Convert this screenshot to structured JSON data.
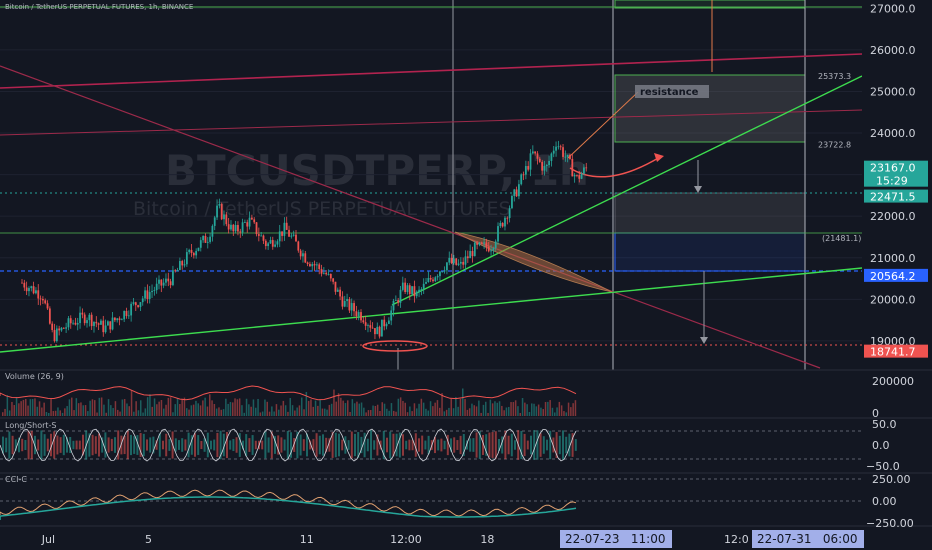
{
  "header": {
    "title": "Bitcoin / TetherUS PERPETUAL FUTURES, 1h, BINANCE"
  },
  "watermark": {
    "symbol": "BTCUSDTPERP, 1h",
    "name": "Bitcoin / TetherUS PERPETUAL FUTURES"
  },
  "colors": {
    "bg": "#131722",
    "up": "#26a69a",
    "down": "#ef5350",
    "green_line": "#3ddc4f",
    "red_line": "#b2234f",
    "blue": "#2962ff",
    "box": "#4caf50",
    "grid": "#1e2230"
  },
  "chart_data": {
    "type": "candlestick",
    "ylim": [
      18300,
      27200
    ],
    "yticks": [
      "27000.0",
      "26000.0",
      "25000.0",
      "24000.0",
      "23000.0",
      "22000.0",
      "21000.0",
      "20000.0",
      "19000.0"
    ],
    "ytick_values": [
      27000,
      26000,
      25000,
      24000,
      23000,
      22000,
      21000,
      20000,
      19000
    ],
    "xticks": [
      "Jul",
      "5",
      "11",
      "12:00",
      "18"
    ],
    "xtick_days": [
      1,
      5,
      11,
      14.5,
      18
    ],
    "x_unit": "day of July 2022",
    "price_path": [
      [
        0.0,
        20400
      ],
      [
        0.8,
        20100
      ],
      [
        1.2,
        19100
      ],
      [
        1.8,
        19400
      ],
      [
        2.5,
        19600
      ],
      [
        3.2,
        19300
      ],
      [
        4.2,
        19800
      ],
      [
        5.0,
        20200
      ],
      [
        5.8,
        20500
      ],
      [
        6.5,
        21100
      ],
      [
        7.2,
        21500
      ],
      [
        7.6,
        22200
      ],
      [
        8.2,
        21600
      ],
      [
        8.8,
        21900
      ],
      [
        9.5,
        21300
      ],
      [
        10.2,
        21700
      ],
      [
        11.0,
        21000
      ],
      [
        11.8,
        20600
      ],
      [
        12.5,
        19900
      ],
      [
        13.2,
        19600
      ],
      [
        13.8,
        19200
      ],
      [
        14.3,
        19700
      ],
      [
        14.8,
        20300
      ],
      [
        15.3,
        20100
      ],
      [
        16.0,
        20600
      ],
      [
        16.5,
        20900
      ],
      [
        17.0,
        20800
      ],
      [
        17.5,
        21200
      ],
      [
        18.2,
        21300
      ],
      [
        18.8,
        22100
      ],
      [
        19.3,
        22800
      ],
      [
        19.8,
        23500
      ],
      [
        20.3,
        23100
      ],
      [
        20.7,
        23800
      ],
      [
        21.1,
        23400
      ],
      [
        21.5,
        22900
      ],
      [
        21.9,
        23167
      ]
    ],
    "price_labels": [
      {
        "value": 23167.0,
        "text": "23167.0",
        "sub": "15:29",
        "color": "#26a69a"
      },
      {
        "value": 22471.5,
        "text": "22471.5",
        "color": "#26a69a"
      },
      {
        "value": 20564.2,
        "text": "20564.2",
        "color": "#2962ff"
      },
      {
        "value": 18741.7,
        "text": "18741.7",
        "color": "#ef5350"
      }
    ],
    "plain_labels": [
      {
        "value": 25373.3,
        "text": "25373.3"
      },
      {
        "value": 23722.8,
        "text": "23722.8"
      },
      {
        "value": 21481.1,
        "text": "(21481.1)"
      }
    ],
    "annotation": "resistance",
    "date_labels": [
      "22-07-23   11:00",
      "22-07-31   06:00"
    ],
    "partial_tick": "12:0"
  },
  "indicators": {
    "volume": {
      "label": "Volume (26, 9)",
      "ticks": [
        "200000",
        "0"
      ]
    },
    "longshort": {
      "label": "Long/Short-S",
      "ticks": [
        "50.0",
        "0.0",
        "−50.0"
      ]
    },
    "cci": {
      "label": "CCI-C",
      "ticks": [
        "250.00",
        "0.00",
        "−250.00"
      ]
    }
  }
}
